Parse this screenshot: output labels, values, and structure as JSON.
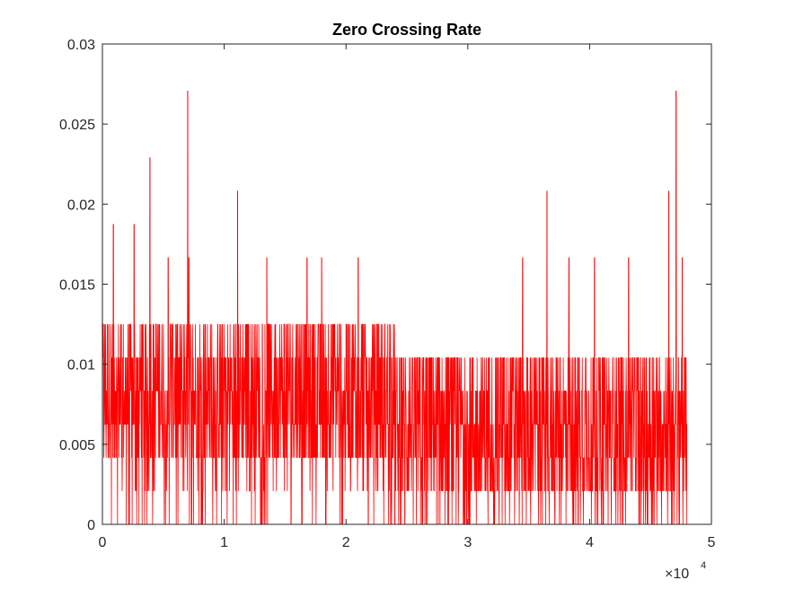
{
  "chart_data": {
    "type": "line",
    "title": "Zero Crossing Rate",
    "xlabel": "",
    "ylabel": "",
    "xlim": [
      0,
      50000
    ],
    "ylim": [
      0,
      0.03
    ],
    "x_ticks": [
      0,
      10000,
      20000,
      30000,
      40000,
      50000
    ],
    "x_tick_labels": [
      "0",
      "1",
      "2",
      "3",
      "4",
      "5"
    ],
    "x_exponent_label": "×10",
    "x_exponent_power": "4",
    "y_ticks": [
      0,
      0.005,
      0.01,
      0.015,
      0.02,
      0.025,
      0.03
    ],
    "y_tick_labels": [
      "0",
      "0.005",
      "0.01",
      "0.015",
      "0.02",
      "0.025",
      "0.03"
    ],
    "grid": false,
    "series": [
      {
        "color": "#ff0000",
        "x_start": 0,
        "x_end": 48000,
        "levels": [
          0,
          0.002083,
          0.004167,
          0.00625,
          0.008333,
          0.010417,
          0.0125
        ],
        "typical_band_early": [
          0.004167,
          0.0125
        ],
        "typical_band_late": [
          0.002083,
          0.010417
        ],
        "peaks": [
          {
            "x": 900,
            "y": 0.01875
          },
          {
            "x": 2600,
            "y": 0.01875
          },
          {
            "x": 3900,
            "y": 0.022917
          },
          {
            "x": 7000,
            "y": 0.027083
          },
          {
            "x": 11100,
            "y": 0.020833
          },
          {
            "x": 5400,
            "y": 0.016667
          },
          {
            "x": 7100,
            "y": 0.016667
          },
          {
            "x": 13500,
            "y": 0.016667
          },
          {
            "x": 16800,
            "y": 0.016667
          },
          {
            "x": 18000,
            "y": 0.016667
          },
          {
            "x": 21000,
            "y": 0.016667
          },
          {
            "x": 34500,
            "y": 0.016667
          },
          {
            "x": 36500,
            "y": 0.020833
          },
          {
            "x": 38300,
            "y": 0.016667
          },
          {
            "x": 40400,
            "y": 0.016667
          },
          {
            "x": 43200,
            "y": 0.016667
          },
          {
            "x": 46500,
            "y": 0.020833
          },
          {
            "x": 47100,
            "y": 0.027083
          },
          {
            "x": 47600,
            "y": 0.016667
          }
        ]
      }
    ]
  }
}
